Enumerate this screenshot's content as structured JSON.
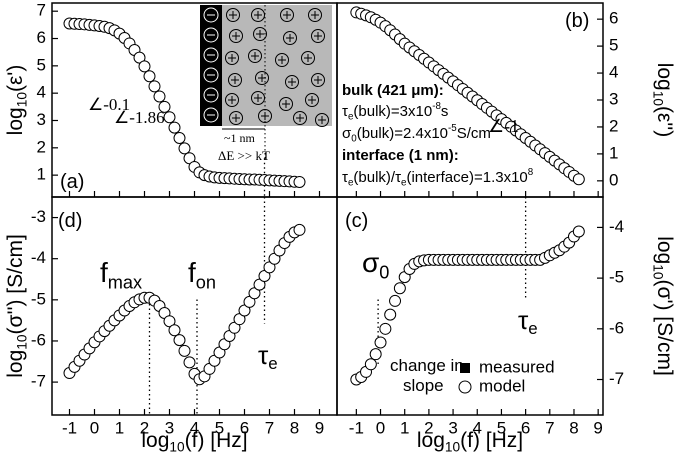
{
  "chart_data": [
    {
      "type": "scatter",
      "y_label": [
        {
          "text": "log"
        },
        {
          "sub": "10"
        },
        {
          "text": "(ε')"
        }
      ],
      "xlim": [
        -1.7,
        9.7
      ],
      "ylim": [
        0.2,
        7.3
      ],
      "xticks": [
        -1,
        0,
        1,
        2,
        3,
        4,
        5,
        6,
        7,
        8,
        9
      ],
      "yticks": [
        1,
        2,
        3,
        4,
        5,
        6,
        7
      ],
      "vlines": [
        6.8
      ],
      "annotations": [
        [
          {
            "text": "(a)"
          }
        ],
        [
          {
            "text": "∠-0.1"
          }
        ],
        [
          {
            "text": "∠-1.86"
          }
        ],
        [
          {
            "text": "~1 nm"
          }
        ],
        [
          {
            "text": "ΔE >> kT"
          }
        ]
      ],
      "series": [
        {
          "name": "measured",
          "color": "#000000",
          "marker": "square",
          "x": [
            -1,
            0,
            1,
            2,
            3,
            4,
            5,
            6,
            7,
            8
          ],
          "values": [
            6.55,
            6.48,
            6.18,
            4.98,
            3.12,
            1.3,
            0.9,
            0.85,
            0.81,
            0.76
          ]
        },
        {
          "name": "model",
          "color": "#ffffff",
          "marker": "circle",
          "x": [
            -1,
            -0.8,
            -0.6,
            -0.4,
            -0.2,
            0,
            0.2,
            0.4,
            0.6,
            0.8,
            1,
            1.2,
            1.4,
            1.6,
            1.8,
            2,
            2.2,
            2.4,
            2.6,
            2.8,
            3,
            3.2,
            3.4,
            3.6,
            3.8,
            4,
            4.2,
            4.4,
            4.6,
            4.8,
            5,
            5.2,
            5.4,
            5.6,
            5.8,
            6,
            6.2,
            6.4,
            6.6,
            6.8,
            7,
            7.2,
            7.4,
            7.6,
            7.8,
            8,
            8.2
          ],
          "values": [
            6.55,
            6.54,
            6.53,
            6.52,
            6.5,
            6.48,
            6.46,
            6.43,
            6.38,
            6.3,
            6.18,
            6.02,
            5.82,
            5.58,
            5.3,
            4.98,
            4.62,
            4.25,
            3.88,
            3.5,
            3.12,
            2.74,
            2.36,
            1.98,
            1.62,
            1.3,
            1.1,
            1.0,
            0.95,
            0.92,
            0.9,
            0.89,
            0.88,
            0.87,
            0.86,
            0.85,
            0.84,
            0.84,
            0.83,
            0.82,
            0.81,
            0.8,
            0.79,
            0.78,
            0.77,
            0.76,
            0.75
          ]
        }
      ]
    },
    {
      "type": "scatter",
      "y_label": [
        {
          "text": "log"
        },
        {
          "sub": "10"
        },
        {
          "text": "(ε'')"
        }
      ],
      "xlim": [
        -1.8,
        9.2
      ],
      "ylim": [
        -0.6,
        6.6
      ],
      "xticks": [
        -1,
        0,
        1,
        2,
        3,
        4,
        5,
        6,
        7,
        8,
        9
      ],
      "yticks": [
        0,
        1,
        2,
        3,
        4,
        5,
        6
      ],
      "annotations": [
        [
          {
            "text": "(b)"
          }
        ],
        [
          {
            "text": "∠-1"
          }
        ],
        [
          {
            "text": "bulk (421 μm):"
          }
        ],
        [
          {
            "text": "τ"
          },
          {
            "sub": "e"
          },
          {
            "text": "(bulk)=3x10"
          },
          {
            "sup": "-8"
          },
          {
            "text": "s"
          }
        ],
        [
          {
            "text": "σ"
          },
          {
            "sub": "0"
          },
          {
            "text": "(bulk)=2.4x10"
          },
          {
            "sup": "-5"
          },
          {
            "text": "S/cm"
          }
        ],
        [
          {
            "text": "interface (1 nm):"
          }
        ],
        [
          {
            "text": "τ"
          },
          {
            "sub": "e"
          },
          {
            "text": "(bulk)/τ"
          },
          {
            "sub": "e"
          },
          {
            "text": "(interface)=1.3x10"
          },
          {
            "sup": "8"
          }
        ]
      ],
      "series": [
        {
          "name": "measured",
          "color": "#000000",
          "marker": "square",
          "x": [
            -1,
            0,
            1,
            2,
            3,
            4,
            5,
            6,
            7,
            8
          ],
          "values": [
            6.25,
            5.87,
            5.09,
            4.39,
            3.69,
            2.99,
            2.29,
            1.59,
            0.89,
            0.19
          ]
        },
        {
          "name": "model",
          "color": "#ffffff",
          "marker": "circle",
          "x": [
            -1,
            -0.8,
            -0.6,
            -0.4,
            -0.2,
            0,
            0.2,
            0.4,
            0.6,
            0.8,
            1,
            1.2,
            1.4,
            1.6,
            1.8,
            2,
            2.2,
            2.4,
            2.6,
            2.8,
            3,
            3.2,
            3.4,
            3.6,
            3.8,
            4,
            4.2,
            4.4,
            4.6,
            4.8,
            5,
            5.2,
            5.4,
            5.6,
            5.8,
            6,
            6.2,
            6.4,
            6.6,
            6.8,
            7,
            7.2,
            7.4,
            7.6,
            7.8,
            8,
            8.2
          ],
          "values": [
            6.25,
            6.2,
            6.14,
            6.07,
            5.98,
            5.87,
            5.74,
            5.59,
            5.43,
            5.26,
            5.09,
            4.95,
            4.81,
            4.67,
            4.53,
            4.39,
            4.25,
            4.11,
            3.97,
            3.83,
            3.69,
            3.55,
            3.41,
            3.27,
            3.13,
            2.99,
            2.85,
            2.71,
            2.57,
            2.43,
            2.29,
            2.15,
            2.01,
            1.87,
            1.73,
            1.59,
            1.45,
            1.31,
            1.17,
            1.03,
            0.89,
            0.75,
            0.61,
            0.47,
            0.33,
            0.19,
            0.06
          ]
        }
      ]
    },
    {
      "type": "scatter",
      "y_label": [
        {
          "text": "log"
        },
        {
          "sub": "10"
        },
        {
          "text": "(σ'') [S/cm]"
        }
      ],
      "x_label": [
        {
          "text": "log"
        },
        {
          "sub": "10"
        },
        {
          "text": "(f) [Hz]"
        }
      ],
      "xlim": [
        -1.7,
        9.7
      ],
      "ylim": [
        -7.8,
        -2.5
      ],
      "xticks": [
        -1,
        0,
        1,
        2,
        3,
        4,
        5,
        6,
        7,
        8,
        9
      ],
      "yticks": [
        -3,
        -4,
        -5,
        -6,
        -7
      ],
      "vlines": [
        2.2,
        4.1,
        6.8
      ],
      "annotations": [
        [
          {
            "text": "(d)"
          }
        ],
        [
          {
            "text": "f"
          },
          {
            "sub": "max"
          }
        ],
        [
          {
            "text": "f"
          },
          {
            "sub": "on"
          }
        ],
        [
          {
            "text": "τ"
          },
          {
            "sub": "e"
          }
        ]
      ],
      "series": [
        {
          "name": "measured",
          "color": "#000000",
          "marker": "square",
          "x": [
            -1,
            0,
            1,
            2,
            3,
            4,
            5,
            6,
            7,
            8
          ],
          "values": [
            -6.78,
            -6.03,
            -5.38,
            -4.95,
            -5.52,
            -6.8,
            -6.28,
            -5.26,
            -4.21,
            -3.36
          ]
        },
        {
          "name": "model",
          "color": "#ffffff",
          "marker": "circle",
          "x": [
            -1,
            -0.8,
            -0.6,
            -0.4,
            -0.2,
            0,
            0.2,
            0.4,
            0.6,
            0.8,
            1,
            1.2,
            1.4,
            1.6,
            1.8,
            2,
            2.2,
            2.4,
            2.6,
            2.8,
            3,
            3.2,
            3.4,
            3.6,
            3.8,
            4,
            4.2,
            4.4,
            4.6,
            4.8,
            5,
            5.2,
            5.4,
            5.6,
            5.8,
            6,
            6.2,
            6.4,
            6.6,
            6.8,
            7,
            7.2,
            7.4,
            7.6,
            7.8,
            8,
            8.2
          ],
          "values": [
            -6.78,
            -6.63,
            -6.48,
            -6.33,
            -6.18,
            -6.03,
            -5.89,
            -5.76,
            -5.63,
            -5.5,
            -5.38,
            -5.26,
            -5.15,
            -5.06,
            -4.99,
            -4.95,
            -4.95,
            -5.02,
            -5.15,
            -5.32,
            -5.52,
            -5.74,
            -5.98,
            -6.24,
            -6.52,
            -6.8,
            -6.93,
            -6.86,
            -6.68,
            -6.48,
            -6.28,
            -6.08,
            -5.88,
            -5.68,
            -5.47,
            -5.26,
            -5.05,
            -4.84,
            -4.63,
            -4.42,
            -4.21,
            -4.0,
            -3.8,
            -3.62,
            -3.47,
            -3.36,
            -3.3
          ]
        }
      ]
    },
    {
      "type": "scatter",
      "y_label": [
        {
          "text": "log"
        },
        {
          "sub": "10"
        },
        {
          "text": "(σ') [S/cm]"
        }
      ],
      "x_label": [
        {
          "text": "log"
        },
        {
          "sub": "10"
        },
        {
          "text": "(f) [Hz]"
        }
      ],
      "xlim": [
        -1.8,
        9.2
      ],
      "ylim": [
        -7.7,
        -3.4
      ],
      "xticks": [
        -1,
        0,
        1,
        2,
        3,
        4,
        5,
        6,
        7,
        8,
        9
      ],
      "yticks": [
        -4,
        -5,
        -6,
        -7
      ],
      "vlines": [
        -0.1,
        6.0
      ],
      "legend": "lower right",
      "annotations": [
        [
          {
            "text": "(c)"
          }
        ],
        [
          {
            "text": "σ"
          },
          {
            "sub": "0"
          }
        ],
        [
          {
            "text": "τ"
          },
          {
            "sub": "e"
          }
        ],
        [
          {
            "text": "change in"
          }
        ],
        [
          {
            "text": "slope"
          }
        ]
      ],
      "series": [
        {
          "name": "measured",
          "color": "#000000",
          "marker": "square",
          "x": [
            -1,
            0,
            1,
            2,
            3,
            4,
            5,
            6,
            7,
            8
          ],
          "values": [
            -7.0,
            -6.27,
            -4.98,
            -4.64,
            -4.64,
            -4.64,
            -4.64,
            -4.64,
            -4.55,
            -4.18
          ]
        },
        {
          "name": "model",
          "color": "#ffffff",
          "marker": "circle",
          "x": [
            -1,
            -0.8,
            -0.6,
            -0.4,
            -0.2,
            0,
            0.2,
            0.4,
            0.6,
            0.8,
            1,
            1.2,
            1.4,
            1.6,
            1.8,
            2,
            2.2,
            2.4,
            2.6,
            2.8,
            3,
            3.2,
            3.4,
            3.6,
            3.8,
            4,
            4.2,
            4.4,
            4.6,
            4.8,
            5,
            5.2,
            5.4,
            5.6,
            5.8,
            6,
            6.2,
            6.4,
            6.6,
            6.8,
            7,
            7.2,
            7.4,
            7.6,
            7.8,
            8,
            8.2
          ],
          "values": [
            -7.0,
            -6.95,
            -6.85,
            -6.7,
            -6.5,
            -6.27,
            -6.0,
            -5.72,
            -5.45,
            -5.2,
            -4.98,
            -4.82,
            -4.72,
            -4.67,
            -4.65,
            -4.64,
            -4.64,
            -4.64,
            -4.64,
            -4.64,
            -4.64,
            -4.64,
            -4.64,
            -4.64,
            -4.64,
            -4.64,
            -4.64,
            -4.64,
            -4.64,
            -4.64,
            -4.64,
            -4.64,
            -4.64,
            -4.64,
            -4.64,
            -4.64,
            -4.64,
            -4.64,
            -4.64,
            -4.6,
            -4.55,
            -4.5,
            -4.45,
            -4.38,
            -4.3,
            -4.18,
            -4.08
          ]
        }
      ]
    }
  ]
}
